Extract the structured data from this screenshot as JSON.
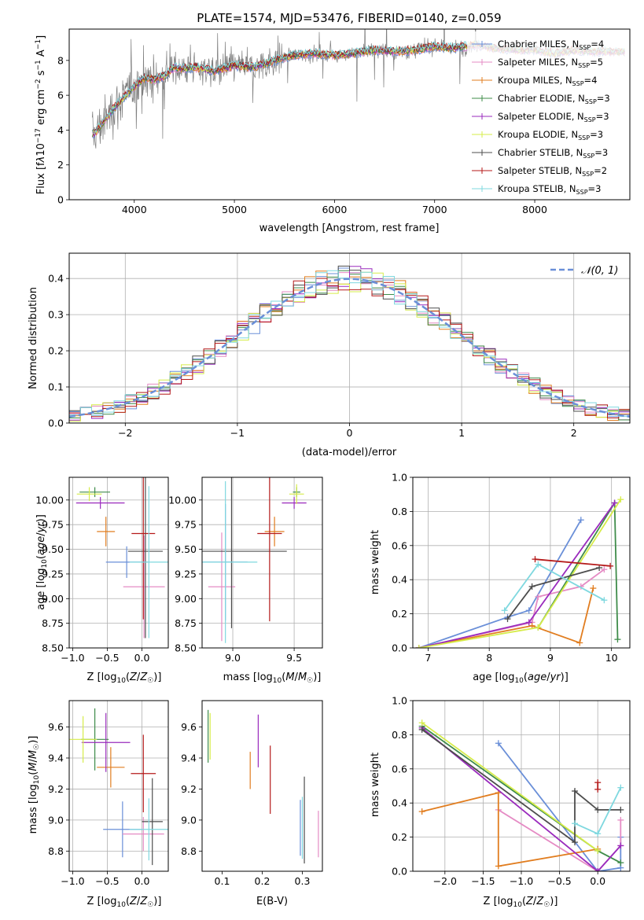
{
  "figure_title": "PLATE=1574, MJD=53476, FIBERID=0140, z=0.059",
  "colors": {
    "Chabrier MILES": "#6a8fd8",
    "Salpeter MILES": "#e58bc4",
    "Kroupa MILES": "#e17d1f",
    "Chabrier ELODIE": "#3f8c4a",
    "Salpeter ELODIE": "#9a2bbd",
    "Kroupa ELODIE": "#d6ec4a",
    "Chabrier STELIB": "#4d4d4d",
    "Salpeter STELIB": "#b51a1a",
    "Kroupa STELIB": "#7fd8df",
    "data": "#7f7f7f"
  },
  "chart_data": [
    {
      "id": "spectrum",
      "type": "line",
      "title": "PLATE=1574, MJD=53476, FIBERID=0140, z=0.059",
      "xlabel": "wavelength [Angstrom, rest frame]",
      "ylabel": "Flux [f_λ 10^-17 erg cm^-2 s^-1 A^-1]",
      "xlim": [
        3350,
        8950
      ],
      "ylim": [
        0,
        9.8
      ],
      "xticks": [
        "4000",
        "5000",
        "6000",
        "7000",
        "8000"
      ],
      "yticks": [
        "0",
        "2",
        "4",
        "6",
        "8"
      ],
      "legend_position": "right",
      "series": [
        {
          "name": "Chabrier MILES, N_SSP=4"
        },
        {
          "name": "Salpeter MILES, N_SSP=5"
        },
        {
          "name": "Kroupa MILES, N_SSP=4"
        },
        {
          "name": "Chabrier ELODIE, N_SSP=3"
        },
        {
          "name": "Salpeter ELODIE, N_SSP=3"
        },
        {
          "name": "Kroupa ELODIE, N_SSP=3"
        },
        {
          "name": "Chabrier STELIB, N_SSP=3"
        },
        {
          "name": "Salpeter STELIB, N_SSP=2"
        },
        {
          "name": "Kroupa STELIB, N_SSP=3"
        }
      ],
      "continuum": {
        "x": [
          3600,
          3700,
          3800,
          3900,
          4000,
          4100,
          4200,
          4300,
          4400,
          4500,
          4600,
          4800,
          5000,
          5200,
          5400,
          5600,
          5800,
          6000,
          6200,
          6400,
          6600,
          6800,
          7000,
          7200,
          7400,
          7600,
          7800,
          8000,
          8200,
          8400,
          8600,
          8800
        ],
        "y": [
          3.8,
          4.5,
          5.3,
          5.9,
          6.5,
          7.0,
          6.9,
          7.1,
          7.6,
          7.5,
          7.6,
          7.4,
          7.7,
          7.6,
          8.0,
          8.3,
          8.4,
          8.3,
          8.4,
          8.6,
          8.5,
          8.6,
          8.8,
          8.7,
          8.9,
          8.7,
          8.6,
          8.6,
          8.4,
          8.6,
          8.5,
          8.5
        ]
      }
    },
    {
      "id": "residual_hist",
      "type": "line",
      "xlabel": "(data-model)/error",
      "ylabel": "Normed distribution",
      "xlim": [
        -2.5,
        2.5
      ],
      "ylim": [
        0,
        0.47
      ],
      "xticks": [
        "−2",
        "−1",
        "0",
        "1",
        "2"
      ],
      "yticks": [
        "0.0",
        "0.1",
        "0.2",
        "0.3",
        "0.4"
      ],
      "legend_label": "𝒩(0, 1)",
      "legend_position": "top-right",
      "grid": true,
      "bin_width": 0.1
    },
    {
      "id": "age_vs_Z",
      "type": "scatter",
      "xlabel": "Z [log10(Z/Z☉)]",
      "ylabel": "age [log10(age/yr)]",
      "xlim": [
        -1.05,
        0.38
      ],
      "ylim": [
        8.5,
        10.23
      ],
      "xticks": [
        "−1.0",
        "−0.5",
        "0.0"
      ],
      "yticks": [
        "8.50",
        "8.75",
        "9.00",
        "9.25",
        "9.50",
        "9.75",
        "10.00"
      ],
      "grid": true,
      "points": [
        {
          "series": "Chabrier MILES",
          "x": -0.22,
          "y": 9.37,
          "xerr": 0.3,
          "yerr": 0.16
        },
        {
          "series": "Salpeter MILES",
          "x": 0.03,
          "y": 9.12,
          "xerr": 0.3,
          "yerr": 0.52
        },
        {
          "series": "Kroupa MILES",
          "x": -0.52,
          "y": 9.68,
          "xerr": 0.13,
          "yerr": 0.15
        },
        {
          "series": "Chabrier ELODIE",
          "x": -0.68,
          "y": 10.08,
          "xerr": 0.22,
          "yerr": 0.05
        },
        {
          "series": "Salpeter ELODIE",
          "x": -0.6,
          "y": 9.97,
          "xerr": 0.35,
          "yerr": 0.06
        },
        {
          "series": "Kroupa ELODIE",
          "x": -0.76,
          "y": 10.06,
          "xerr": 0.18,
          "yerr": 0.07
        },
        {
          "series": "Chabrier STELIB",
          "x": 0.05,
          "y": 9.48,
          "xerr": 0.25,
          "yerr": 0.88
        },
        {
          "series": "Salpeter STELIB",
          "x": 0.02,
          "y": 9.66,
          "xerr": 0.17,
          "yerr": 0.87
        },
        {
          "series": "Kroupa STELIB",
          "x": 0.1,
          "y": 9.37,
          "xerr": 0.28,
          "yerr": 0.77
        }
      ]
    },
    {
      "id": "age_vs_mass",
      "type": "scatter",
      "xlabel": "mass [log10(M/M☉)]",
      "ylabel": "",
      "xlim": [
        8.75,
        9.73
      ],
      "ylim": [
        8.5,
        10.23
      ],
      "xticks": [
        "9.0",
        "9.5"
      ],
      "yticks": [
        "8.50",
        "8.75",
        "9.00",
        "9.25",
        "9.50",
        "9.75",
        "10.00"
      ],
      "grid": true,
      "points": [
        {
          "series": "Chabrier MILES",
          "x": 8.94,
          "y": 9.37,
          "xerr": 0.18,
          "yerr": 0.59
        },
        {
          "series": "Salpeter MILES",
          "x": 8.91,
          "y": 9.12,
          "xerr": 0.11,
          "yerr": 0.55
        },
        {
          "series": "Kroupa MILES",
          "x": 9.34,
          "y": 9.68,
          "xerr": 0.08,
          "yerr": 0.15
        },
        {
          "series": "Chabrier ELODIE",
          "x": 9.52,
          "y": 10.08,
          "xerr": 0.03,
          "yerr": 0.05
        },
        {
          "series": "Salpeter ELODIE",
          "x": 9.5,
          "y": 9.97,
          "xerr": 0.1,
          "yerr": 0.06
        },
        {
          "series": "Kroupa ELODIE",
          "x": 9.52,
          "y": 10.06,
          "xerr": 0.06,
          "yerr": 0.1
        },
        {
          "series": "Chabrier STELIB",
          "x": 8.99,
          "y": 9.48,
          "xerr": 0.45,
          "yerr": 0.78
        },
        {
          "series": "Salpeter STELIB",
          "x": 9.3,
          "y": 9.66,
          "xerr": 0.1,
          "yerr": 0.89
        },
        {
          "series": "Kroupa STELIB",
          "x": 8.94,
          "y": 9.37,
          "xerr": 0.26,
          "yerr": 0.82
        }
      ]
    },
    {
      "id": "weight_vs_age",
      "type": "line",
      "xlabel": "age [log10(age/yr)]",
      "ylabel": "mass weight",
      "xlim": [
        6.75,
        10.3
      ],
      "ylim": [
        0,
        1
      ],
      "xticks": [
        "7",
        "8",
        "9",
        "10"
      ],
      "yticks": [
        "0.0",
        "0.2",
        "0.4",
        "0.6",
        "0.8",
        "1.0"
      ],
      "grid": true,
      "series": [
        {
          "color_key": "Chabrier MILES",
          "x": [
            6.85,
            8.3,
            8.65,
            9.5
          ],
          "y": [
            0.0,
            0.18,
            0.22,
            0.75
          ]
        },
        {
          "color_key": "Salpeter MILES",
          "x": [
            6.85,
            8.7,
            8.8,
            9.5,
            9.88
          ],
          "y": [
            0.0,
            0.15,
            0.3,
            0.36,
            0.46
          ]
        },
        {
          "color_key": "Kroupa MILES",
          "x": [
            6.85,
            8.7,
            9.48,
            9.7
          ],
          "y": [
            0.0,
            0.13,
            0.03,
            0.35
          ]
        },
        {
          "color_key": "Chabrier ELODIE",
          "x": [
            8.8,
            10.05,
            10.1
          ],
          "y": [
            0.12,
            0.85,
            0.05
          ]
        },
        {
          "color_key": "Salpeter ELODIE",
          "x": [
            6.85,
            8.65,
            10.05
          ],
          "y": [
            0.0,
            0.15,
            0.85
          ]
        },
        {
          "color_key": "Kroupa ELODIE",
          "x": [
            6.85,
            8.8,
            10.15
          ],
          "y": [
            0.0,
            0.12,
            0.87
          ]
        },
        {
          "color_key": "Chabrier STELIB",
          "x": [
            8.3,
            8.7,
            9.8
          ],
          "y": [
            0.17,
            0.36,
            0.47
          ]
        },
        {
          "color_key": "Salpeter STELIB",
          "x": [
            8.75,
            9.98
          ],
          "y": [
            0.52,
            0.48
          ]
        },
        {
          "color_key": "Kroupa STELIB",
          "x": [
            8.25,
            8.8,
            9.88
          ],
          "y": [
            0.22,
            0.49,
            0.28
          ]
        }
      ]
    },
    {
      "id": "mass_vs_Z",
      "type": "scatter",
      "xlabel": "Z [log10(Z/Z☉)]",
      "ylabel": "mass [log10(M/M☉)]",
      "xlim": [
        -1.05,
        0.38
      ],
      "ylim": [
        8.67,
        9.77
      ],
      "xticks": [
        "−1.0",
        "−0.5",
        "0.0"
      ],
      "yticks": [
        "8.8",
        "9.0",
        "9.2",
        "9.4",
        "9.6"
      ],
      "grid": true,
      "points": [
        {
          "series": "Chabrier MILES",
          "x": -0.28,
          "y": 8.94,
          "xerr": 0.28,
          "yerr": 0.18
        },
        {
          "series": "Salpeter MILES",
          "x": 0.02,
          "y": 8.91,
          "xerr": 0.3,
          "yerr": 0.11
        },
        {
          "series": "Kroupa MILES",
          "x": -0.45,
          "y": 9.34,
          "xerr": 0.2,
          "yerr": 0.13
        },
        {
          "series": "Chabrier ELODIE",
          "x": -0.68,
          "y": 9.52,
          "xerr": 0.2,
          "yerr": 0.2
        },
        {
          "series": "Salpeter ELODIE",
          "x": -0.52,
          "y": 9.5,
          "xerr": 0.35,
          "yerr": 0.19
        },
        {
          "series": "Kroupa ELODIE",
          "x": -0.85,
          "y": 9.52,
          "xerr": 0.2,
          "yerr": 0.15
        },
        {
          "series": "Chabrier STELIB",
          "x": 0.15,
          "y": 8.99,
          "xerr": 0.15,
          "yerr": 0.28
        },
        {
          "series": "Salpeter STELIB",
          "x": 0.02,
          "y": 9.3,
          "xerr": 0.18,
          "yerr": 0.25
        },
        {
          "series": "Kroupa STELIB",
          "x": 0.1,
          "y": 8.94,
          "xerr": 0.28,
          "yerr": 0.2
        }
      ]
    },
    {
      "id": "mass_vs_EBV",
      "type": "scatter",
      "xlabel": "E(B-V)",
      "ylabel": "",
      "xlim": [
        0.05,
        0.35
      ],
      "ylim": [
        8.67,
        9.77
      ],
      "xticks": [
        "0.1",
        "0.2",
        "0.3"
      ],
      "yticks": [
        "8.8",
        "9.0",
        "9.2",
        "9.4",
        "9.6"
      ],
      "grid": false,
      "points": [
        {
          "series": "Chabrier MILES",
          "x": 0.295,
          "y": 8.95,
          "xerr": 0,
          "yerr": 0.18
        },
        {
          "series": "Salpeter MILES",
          "x": 0.34,
          "y": 8.91,
          "xerr": 0,
          "yerr": 0.15
        },
        {
          "series": "Kroupa MILES",
          "x": 0.17,
          "y": 9.32,
          "xerr": 0,
          "yerr": 0.12
        },
        {
          "series": "Chabrier ELODIE",
          "x": 0.065,
          "y": 9.54,
          "xerr": 0,
          "yerr": 0.17
        },
        {
          "series": "Salpeter ELODIE",
          "x": 0.19,
          "y": 9.51,
          "xerr": 0,
          "yerr": 0.17
        },
        {
          "series": "Kroupa ELODIE",
          "x": 0.07,
          "y": 9.54,
          "xerr": 0,
          "yerr": 0.15
        },
        {
          "series": "Chabrier STELIB",
          "x": 0.305,
          "y": 9.0,
          "xerr": 0,
          "yerr": 0.28
        },
        {
          "series": "Salpeter STELIB",
          "x": 0.22,
          "y": 9.26,
          "xerr": 0,
          "yerr": 0.22
        },
        {
          "series": "Kroupa STELIB",
          "x": 0.3,
          "y": 8.95,
          "xerr": 0,
          "yerr": 0.2
        }
      ]
    },
    {
      "id": "weight_vs_Z",
      "type": "line",
      "xlabel": "Z [log10(Z/Z☉)]",
      "ylabel": "mass weight",
      "xlim": [
        -2.42,
        0.42
      ],
      "ylim": [
        0,
        1
      ],
      "xticks": [
        "−2.0",
        "−1.5",
        "−1.0",
        "−0.5",
        "0.0"
      ],
      "yticks": [
        "0.0",
        "0.2",
        "0.4",
        "0.6",
        "0.8",
        "1.0"
      ],
      "grid": true,
      "series": [
        {
          "color_key": "Chabrier MILES",
          "x": [
            -1.3,
            0.0,
            0.3,
            0.3
          ],
          "y": [
            0.75,
            0.0,
            0.02,
            0.2
          ]
        },
        {
          "color_key": "Salpeter MILES",
          "x": [
            -1.3,
            0.0,
            0.3,
            0.3
          ],
          "y": [
            0.36,
            0.0,
            0.15,
            0.3
          ]
        },
        {
          "color_key": "Kroupa MILES",
          "x": [
            -2.3,
            -1.3,
            -1.3,
            0.0
          ],
          "y": [
            0.35,
            0.46,
            0.03,
            0.13
          ]
        },
        {
          "color_key": "Chabrier ELODIE",
          "x": [
            -2.3,
            0.0,
            0.3
          ],
          "y": [
            0.85,
            0.12,
            0.05
          ]
        },
        {
          "color_key": "Salpeter ELODIE",
          "x": [
            -2.3,
            0.0,
            0.3
          ],
          "y": [
            0.84,
            0.0,
            0.15
          ]
        },
        {
          "color_key": "Kroupa ELODIE",
          "x": [
            -2.3,
            0.0
          ],
          "y": [
            0.87,
            0.12
          ]
        },
        {
          "color_key": "Chabrier STELIB",
          "x": [
            -2.3,
            -0.3,
            -0.3,
            0.0,
            0.3
          ],
          "y": [
            0.83,
            0.17,
            0.47,
            0.36,
            0.36
          ]
        },
        {
          "color_key": "Salpeter STELIB",
          "x": [
            0.0,
            0.0
          ],
          "y": [
            0.52,
            0.48
          ]
        },
        {
          "color_key": "Kroupa STELIB",
          "x": [
            -0.3,
            0.0,
            0.3
          ],
          "y": [
            0.28,
            0.22,
            0.49
          ]
        }
      ]
    }
  ]
}
